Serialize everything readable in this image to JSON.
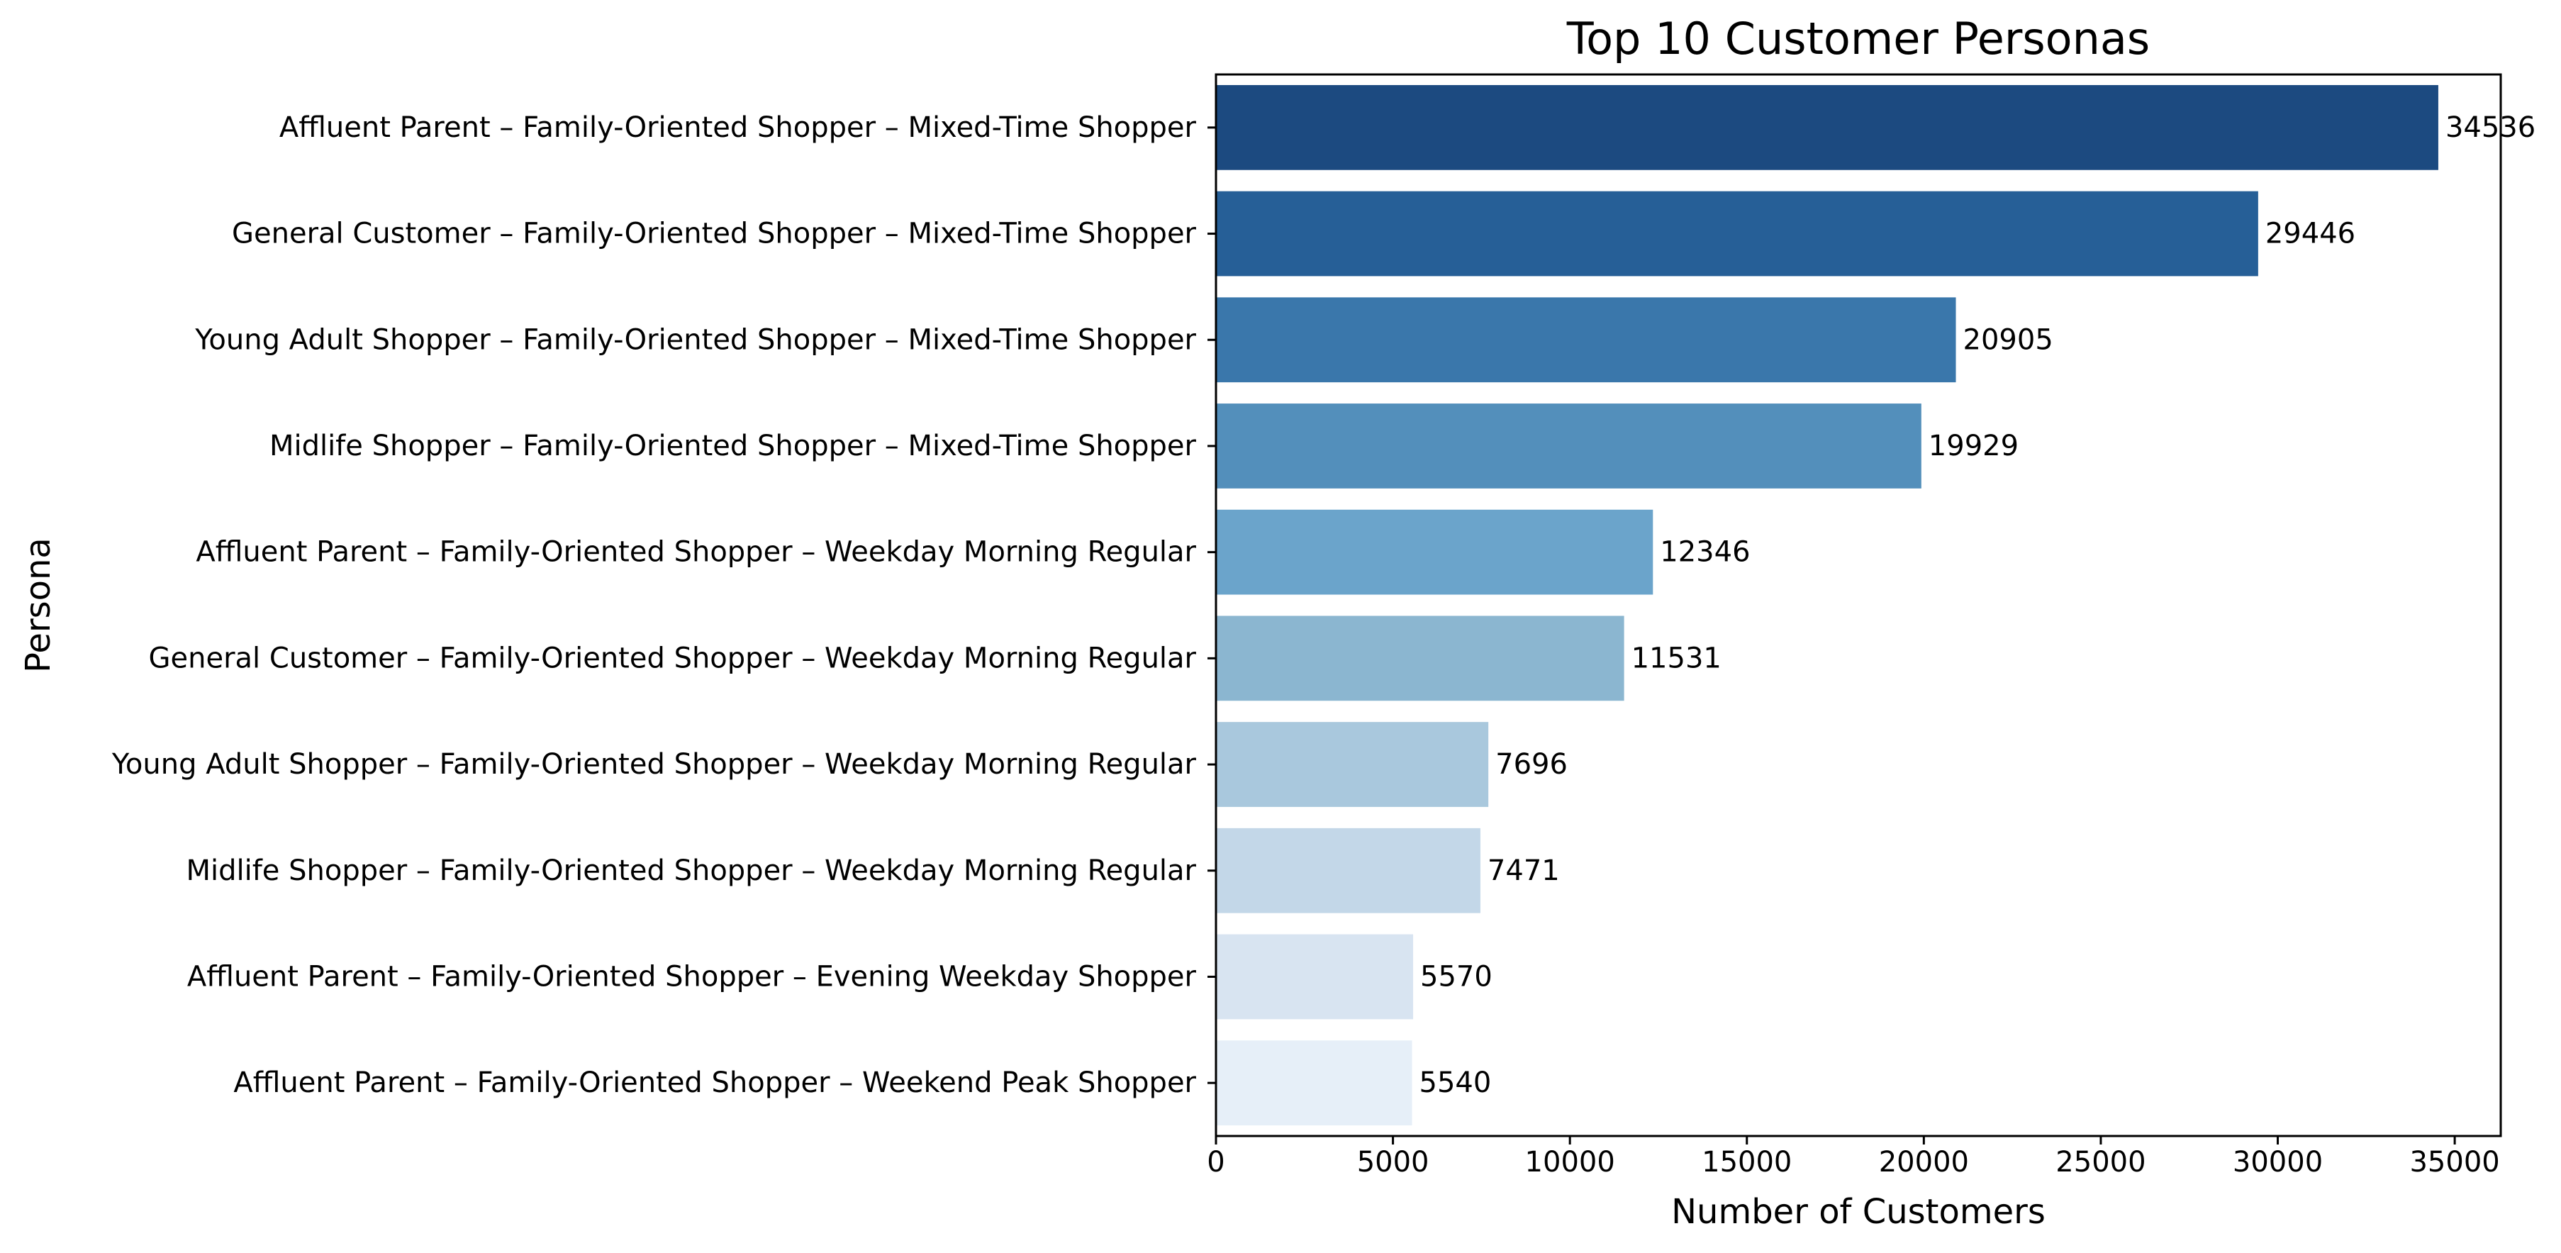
{
  "chart_data": {
    "type": "bar",
    "orientation": "horizontal",
    "title": "Top 10 Customer Personas",
    "xlabel": "Number of Customers",
    "ylabel": "Persona",
    "xlim": [
      0,
      36300
    ],
    "xticks": [
      0,
      5000,
      10000,
      15000,
      20000,
      25000,
      30000,
      35000
    ],
    "grid": false,
    "categories": [
      "Affluent Parent – Family-Oriented Shopper – Mixed-Time Shopper",
      "General Customer – Family-Oriented Shopper – Mixed-Time Shopper",
      "Young Adult Shopper – Family-Oriented Shopper – Mixed-Time Shopper",
      "Midlife Shopper – Family-Oriented Shopper – Mixed-Time Shopper",
      "Affluent Parent – Family-Oriented Shopper – Weekday Morning Regular",
      "General Customer – Family-Oriented Shopper – Weekday Morning Regular",
      "Young Adult Shopper – Family-Oriented Shopper – Weekday Morning Regular",
      "Midlife Shopper – Family-Oriented Shopper – Weekday Morning Regular",
      "Affluent Parent – Family-Oriented Shopper – Evening Weekday Shopper",
      "Affluent Parent – Family-Oriented Shopper – Weekend Peak Shopper"
    ],
    "values": [
      34536,
      29446,
      20905,
      19929,
      12346,
      11531,
      7696,
      7471,
      5570,
      5540
    ],
    "data_labels": [
      "34536",
      "29446",
      "20905",
      "19929",
      "12346",
      "11531",
      "7696",
      "7471",
      "5570",
      "5540"
    ],
    "colors": [
      "#1c4a80",
      "#265f97",
      "#3a77ab",
      "#538fbb",
      "#6ba4cb",
      "#8bb6d0",
      "#a9c8dd",
      "#c3d7e8",
      "#d8e4f1",
      "#e6eff8"
    ]
  }
}
